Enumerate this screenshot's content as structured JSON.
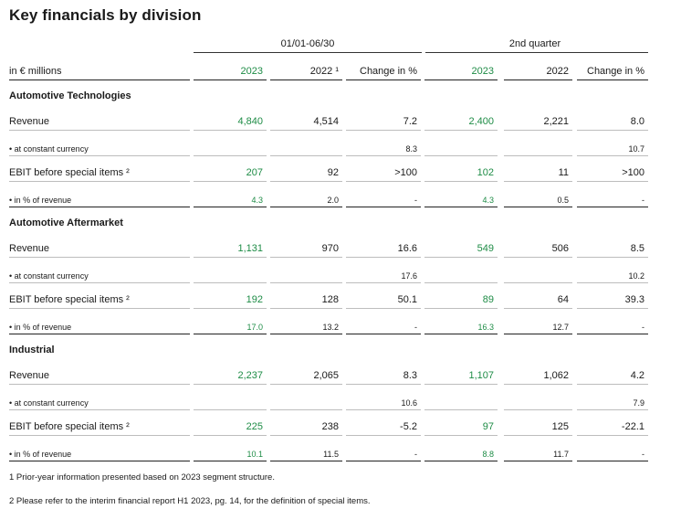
{
  "title": "Key financials by division",
  "column_groups": {
    "first_half": "01/01-06/30",
    "second_quarter": "2nd quarter"
  },
  "header": {
    "unit_label": "in € millions",
    "columns": [
      "2023",
      "2022 ¹",
      "Change in %",
      "2023",
      "2022",
      "Change in %"
    ]
  },
  "sections": [
    {
      "name": "Automotive Technologies",
      "rows": [
        {
          "label": "Revenue",
          "values": [
            "4,840",
            "4,514",
            "7.2",
            "2,400",
            "2,221",
            "8.0"
          ]
        },
        {
          "label": "• at constant currency",
          "values": [
            "",
            "",
            "8.3",
            "",
            "",
            "10.7"
          ]
        },
        {
          "label": "EBIT before special items ²",
          "values": [
            "207",
            "92",
            ">100",
            "102",
            "11",
            ">100"
          ]
        },
        {
          "label": "• in % of revenue",
          "values": [
            "4.3",
            "2.0",
            "-",
            "4.3",
            "0.5",
            "-"
          ]
        }
      ]
    },
    {
      "name": "Automotive Aftermarket",
      "rows": [
        {
          "label": "Revenue",
          "values": [
            "1,131",
            "970",
            "16.6",
            "549",
            "506",
            "8.5"
          ]
        },
        {
          "label": "• at constant currency",
          "values": [
            "",
            "",
            "17.6",
            "",
            "",
            "10.2"
          ]
        },
        {
          "label": "EBIT before special items ²",
          "values": [
            "192",
            "128",
            "50.1",
            "89",
            "64",
            "39.3"
          ]
        },
        {
          "label": "• in % of revenue",
          "values": [
            "17.0",
            "13.2",
            "-",
            "16.3",
            "12.7",
            "-"
          ]
        }
      ]
    },
    {
      "name": "Industrial",
      "rows": [
        {
          "label": "Revenue",
          "values": [
            "2,237",
            "2,065",
            "8.3",
            "1,107",
            "1,062",
            "4.2"
          ]
        },
        {
          "label": "• at constant currency",
          "values": [
            "",
            "",
            "10.6",
            "",
            "",
            "7.9"
          ]
        },
        {
          "label": "EBIT before special items ²",
          "values": [
            "225",
            "238",
            "-5.2",
            "97",
            "125",
            "-22.1"
          ]
        },
        {
          "label": "• in % of revenue",
          "values": [
            "10.1",
            "11.5",
            "-",
            "8.8",
            "11.7",
            "-"
          ]
        }
      ]
    }
  ],
  "footnotes": [
    "1 Prior-year information presented based on 2023 segment structure.",
    "2 Please refer to the interim financial report H1 2023, pg. 14, for the definition of special items."
  ],
  "colors": {
    "highlight_2023": "#1e8c46",
    "text": "#1a1a1a"
  }
}
